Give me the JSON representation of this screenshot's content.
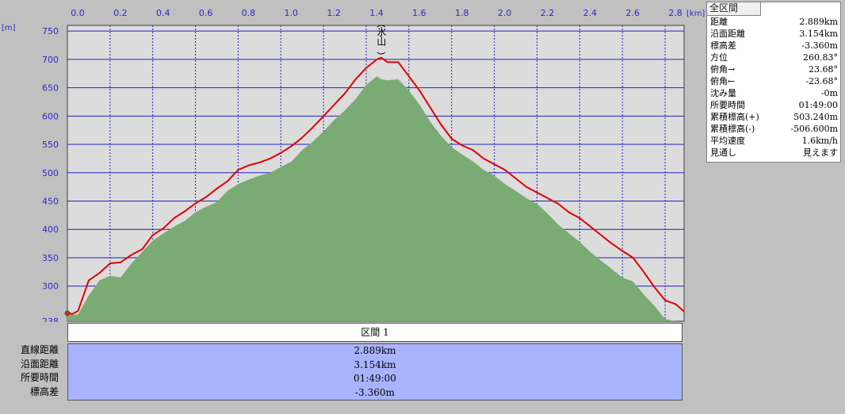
{
  "chart_data": {
    "type": "area",
    "x_unit": "[km]",
    "y_unit": "[m]",
    "xlim": [
      0.0,
      2.889
    ],
    "ylim": [
      238,
      760
    ],
    "x_ticks": [
      "0.0",
      "0.2",
      "0.4",
      "0.6",
      "0.8",
      "1.0",
      "1.2",
      "1.4",
      "1.6",
      "1.8",
      "2.0",
      "2.2",
      "2.4",
      "2.6",
      "2.8"
    ],
    "y_ticks": [
      "750",
      "700",
      "650",
      "600",
      "550",
      "500",
      "450",
      "400",
      "350",
      "300",
      "238"
    ],
    "grid": true,
    "peak_label": "氷山",
    "series": [
      {
        "x": [
          0.0,
          0.05,
          0.1,
          0.15,
          0.2,
          0.25,
          0.3,
          0.35,
          0.4,
          0.45,
          0.5,
          0.55,
          0.6,
          0.65,
          0.7,
          0.75,
          0.8,
          0.85,
          0.9,
          0.95,
          1.0,
          1.05,
          1.1,
          1.15,
          1.2,
          1.25,
          1.3,
          1.35,
          1.4,
          1.45,
          1.47,
          1.5,
          1.55,
          1.6,
          1.65,
          1.7,
          1.75,
          1.8,
          1.85,
          1.9,
          1.95,
          2.0,
          2.05,
          2.1,
          2.15,
          2.2,
          2.25,
          2.3,
          2.35,
          2.4,
          2.45,
          2.5,
          2.55,
          2.6,
          2.65,
          2.7,
          2.75,
          2.8,
          2.85,
          2.889
        ],
        "values": [
          248,
          250,
          283,
          310,
          318,
          315,
          340,
          360,
          380,
          393,
          405,
          415,
          430,
          440,
          448,
          468,
          480,
          488,
          495,
          500,
          510,
          520,
          540,
          555,
          573,
          593,
          610,
          630,
          655,
          670,
          665,
          663,
          665,
          645,
          620,
          590,
          565,
          545,
          532,
          520,
          505,
          495,
          480,
          468,
          455,
          445,
          428,
          408,
          393,
          378,
          360,
          345,
          330,
          315,
          308,
          285,
          265,
          242,
          238,
          238
        ]
      },
      {
        "x": [
          0.0,
          0.02,
          0.05,
          0.1,
          0.15,
          0.2,
          0.25,
          0.3,
          0.35,
          0.4,
          0.45,
          0.5,
          0.55,
          0.6,
          0.65,
          0.7,
          0.75,
          0.8,
          0.85,
          0.9,
          0.95,
          1.0,
          1.05,
          1.1,
          1.15,
          1.2,
          1.25,
          1.3,
          1.35,
          1.4,
          1.45,
          1.47,
          1.5,
          1.55,
          1.6,
          1.65,
          1.7,
          1.75,
          1.8,
          1.85,
          1.9,
          1.95,
          2.0,
          2.05,
          2.1,
          2.15,
          2.2,
          2.25,
          2.3,
          2.35,
          2.4,
          2.45,
          2.5,
          2.55,
          2.6,
          2.65,
          2.7,
          2.75,
          2.8,
          2.85,
          2.889
        ],
        "values": [
          255,
          250,
          256,
          310,
          323,
          340,
          342,
          355,
          365,
          390,
          402,
          420,
          432,
          446,
          457,
          472,
          485,
          505,
          513,
          518,
          525,
          535,
          547,
          562,
          580,
          600,
          620,
          640,
          665,
          685,
          700,
          703,
          695,
          695,
          670,
          645,
          615,
          585,
          560,
          548,
          540,
          525,
          515,
          505,
          490,
          475,
          465,
          455,
          445,
          430,
          420,
          405,
          390,
          375,
          362,
          350,
          325,
          298,
          275,
          268,
          255
        ]
      }
    ],
    "colors": {
      "fill": "#7aab74",
      "line": "#e00000",
      "plot_bg": "#dcdcdc",
      "grid": "#2020c0"
    }
  },
  "info_panel": {
    "title": "全区間",
    "rows": [
      {
        "label": "距離",
        "value": "2.889km"
      },
      {
        "label": "沿面距離",
        "value": "3.154km"
      },
      {
        "label": "標高差",
        "value": "-3.360m"
      },
      {
        "label": "方位",
        "value": "260.83°"
      },
      {
        "label": "俯角→",
        "value": "23.68°"
      },
      {
        "label": "俯角←",
        "value": "-23.68°"
      },
      {
        "label": "沈み量",
        "value": "-0m"
      },
      {
        "label": "所要時間",
        "value": "01:49:00"
      },
      {
        "label": "累積標高(+)",
        "value": "503.240m"
      },
      {
        "label": "累積標高(-)",
        "value": "-506.600m"
      },
      {
        "label": "平均速度",
        "value": "1.6km/h"
      },
      {
        "label": "見通し",
        "value": "見えます"
      }
    ]
  },
  "section": {
    "header": "区間 1",
    "labels": [
      "直線距離",
      "沿面距離",
      "所要時間",
      "標高差"
    ],
    "values": [
      "2.889km",
      "3.154km",
      "01:49:00",
      "-3.360m"
    ]
  }
}
